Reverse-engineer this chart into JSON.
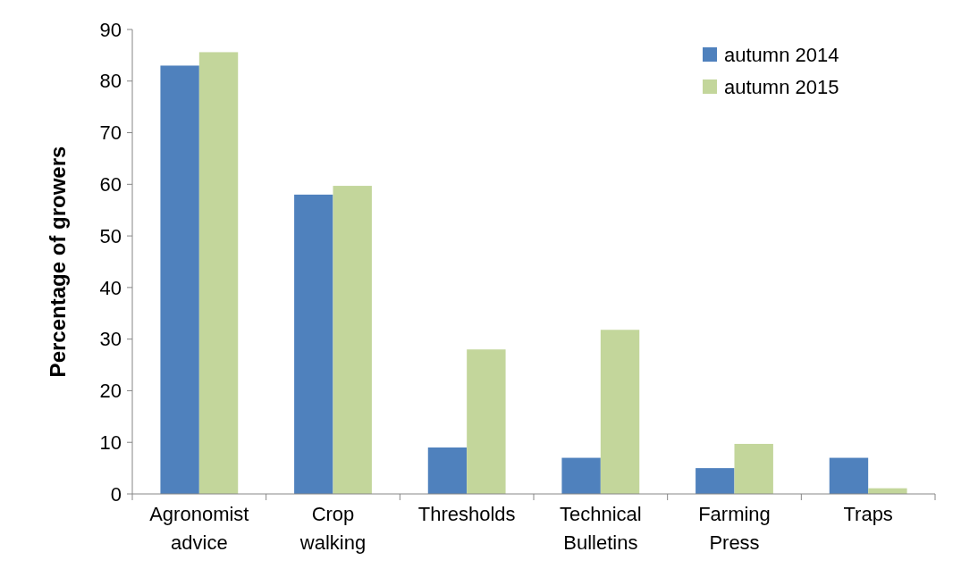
{
  "chart_data": {
    "type": "bar",
    "ylabel": "Percentage of growers",
    "categories": [
      "Agronomist advice",
      "Crop walking",
      "Thresholds",
      "Technical Bulletins",
      "Farming Press",
      "Traps"
    ],
    "series": [
      {
        "name": "autumn 2014",
        "color": "#4f81bd",
        "values": [
          83,
          58,
          9,
          7,
          5,
          7
        ]
      },
      {
        "name": "autumn 2015",
        "color": "#c3d69b",
        "values": [
          85.6,
          59.7,
          28,
          31.8,
          9.7,
          1.1
        ]
      }
    ],
    "ylim": [
      0,
      90
    ],
    "yticks": [
      0,
      10,
      20,
      30,
      40,
      50,
      60,
      70,
      80,
      90
    ],
    "legend": "top right"
  }
}
